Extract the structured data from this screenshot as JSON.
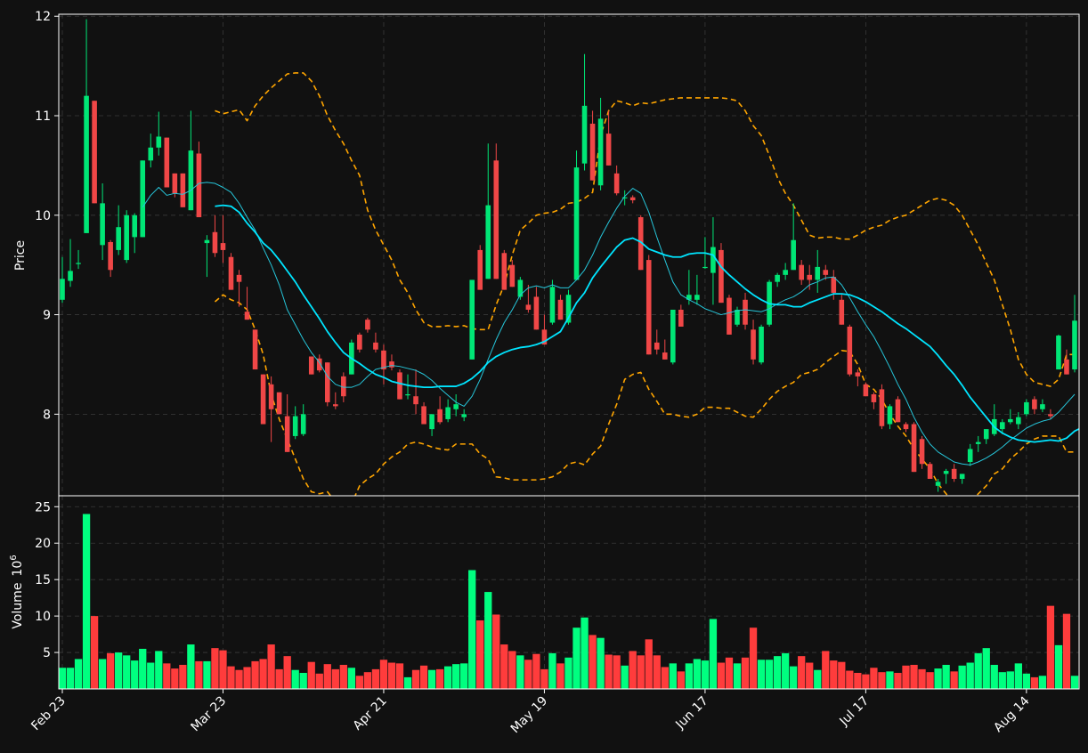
{
  "chart_data": {
    "type": "candlestick",
    "price_panel": {
      "ylabel": "Price",
      "ylim": [
        7.18,
        12.02
      ],
      "yticks": [
        8,
        9,
        10,
        11,
        12
      ],
      "grid": true
    },
    "volume_panel": {
      "ylabel": "Volume",
      "ylabel_exponent": "6",
      "ylim": [
        0,
        26.5
      ],
      "yticks": [
        5,
        10,
        15,
        20,
        25
      ],
      "grid": true
    },
    "x_axis": {
      "ticks": [
        {
          "index": 0,
          "label": "Feb 23"
        },
        {
          "index": 20,
          "label": "Mar 23"
        },
        {
          "index": 40,
          "label": "Apr 21"
        },
        {
          "index": 60,
          "label": "May 19"
        },
        {
          "index": 80,
          "label": "Jun 17"
        },
        {
          "index": 100,
          "label": "Jul 17"
        },
        {
          "index": 120,
          "label": "Aug 14"
        }
      ],
      "n_bars": 127
    },
    "colors": {
      "background": "#111111",
      "up": "#00e676",
      "down": "#f04747",
      "volume_up": "#00ff80",
      "volume_down": "#ff3c3c",
      "ma_fast": "#26c6da",
      "ma_slow": "#00e5ff",
      "bollinger": "#ffa500",
      "grid": "#3a3a3a",
      "axes": "#ffffff"
    },
    "ohlc": [
      [
        9.15,
        9.58,
        9.12,
        9.36
      ],
      [
        9.34,
        9.76,
        9.28,
        9.44
      ],
      [
        9.52,
        9.65,
        9.46,
        9.52
      ],
      [
        9.82,
        11.97,
        9.82,
        11.2
      ],
      [
        11.15,
        11.15,
        10.12,
        10.12
      ],
      [
        9.7,
        10.32,
        9.55,
        10.12
      ],
      [
        9.73,
        9.75,
        9.38,
        9.45
      ],
      [
        9.65,
        10.1,
        9.6,
        9.88
      ],
      [
        9.55,
        10.05,
        9.52,
        10.0
      ],
      [
        9.78,
        10.02,
        9.62,
        10.0
      ],
      [
        9.78,
        10.55,
        9.78,
        10.55
      ],
      [
        10.55,
        10.82,
        10.48,
        10.68
      ],
      [
        10.68,
        11.04,
        10.6,
        10.79
      ],
      [
        10.78,
        10.78,
        10.28,
        10.28
      ],
      [
        10.42,
        10.42,
        10.18,
        10.22
      ],
      [
        10.42,
        10.42,
        10.08,
        10.08
      ],
      [
        10.05,
        11.05,
        10.05,
        10.65
      ],
      [
        10.62,
        10.74,
        9.98,
        9.98
      ],
      [
        9.72,
        9.8,
        9.38,
        9.75
      ],
      [
        9.83,
        10.0,
        9.58,
        9.62
      ],
      [
        9.72,
        10.0,
        9.52,
        9.65
      ],
      [
        9.58,
        9.62,
        9.25,
        9.25
      ],
      [
        9.4,
        9.45,
        9.08,
        9.33
      ],
      [
        9.03,
        9.28,
        8.95,
        8.95
      ],
      [
        8.85,
        8.85,
        8.45,
        8.45
      ],
      [
        8.4,
        8.4,
        7.9,
        7.9
      ],
      [
        8.3,
        8.38,
        7.72,
        8.05
      ],
      [
        8.22,
        8.22,
        8.0,
        8.0
      ],
      [
        7.98,
        8.2,
        7.62,
        7.62
      ],
      [
        7.78,
        8.08,
        7.75,
        7.98
      ],
      [
        7.8,
        8.1,
        7.78,
        8.0
      ],
      [
        8.58,
        8.58,
        8.4,
        8.4
      ],
      [
        8.56,
        8.6,
        8.42,
        8.44
      ],
      [
        8.52,
        8.52,
        8.08,
        8.12
      ],
      [
        8.1,
        8.22,
        8.05,
        8.08
      ],
      [
        8.38,
        8.42,
        8.12,
        8.18
      ],
      [
        8.4,
        8.75,
        8.4,
        8.72
      ],
      [
        8.8,
        8.82,
        8.62,
        8.65
      ],
      [
        8.95,
        8.97,
        8.82,
        8.85
      ],
      [
        8.72,
        8.82,
        8.62,
        8.65
      ],
      [
        8.64,
        8.7,
        8.3,
        8.45
      ],
      [
        8.53,
        8.6,
        8.44,
        8.47
      ],
      [
        8.42,
        8.45,
        8.15,
        8.15
      ],
      [
        8.2,
        8.4,
        8.15,
        8.2
      ],
      [
        8.18,
        8.45,
        8.0,
        8.1
      ],
      [
        8.08,
        8.12,
        7.9,
        7.9
      ],
      [
        7.85,
        8.0,
        7.78,
        8.0
      ],
      [
        8.05,
        8.18,
        7.9,
        7.92
      ],
      [
        7.95,
        8.15,
        7.92,
        8.07
      ],
      [
        8.05,
        8.2,
        7.98,
        8.1
      ],
      [
        7.97,
        8.05,
        7.93,
        8.0
      ],
      [
        8.55,
        9.35,
        8.55,
        9.35
      ],
      [
        9.65,
        9.7,
        9.25,
        9.25
      ],
      [
        9.36,
        10.72,
        9.36,
        10.1
      ],
      [
        10.55,
        10.72,
        9.36,
        9.36
      ],
      [
        9.62,
        9.65,
        9.25,
        9.25
      ],
      [
        9.5,
        9.55,
        9.28,
        9.28
      ],
      [
        9.18,
        9.38,
        9.15,
        9.35
      ],
      [
        9.1,
        9.3,
        9.02,
        9.05
      ],
      [
        9.18,
        9.28,
        8.85,
        8.85
      ],
      [
        8.85,
        9.0,
        8.7,
        8.7
      ],
      [
        8.92,
        9.35,
        8.9,
        9.28
      ],
      [
        9.15,
        9.2,
        8.95,
        8.95
      ],
      [
        8.92,
        9.25,
        8.9,
        9.2
      ],
      [
        9.35,
        10.65,
        9.35,
        10.48
      ],
      [
        10.52,
        11.62,
        10.45,
        11.1
      ],
      [
        10.92,
        11.05,
        10.35,
        10.35
      ],
      [
        10.3,
        11.18,
        10.25,
        10.97
      ],
      [
        10.82,
        11.05,
        10.5,
        10.5
      ],
      [
        10.42,
        10.5,
        10.2,
        10.22
      ],
      [
        10.18,
        10.25,
        10.1,
        10.18
      ],
      [
        10.18,
        10.2,
        10.12,
        10.15
      ],
      [
        9.98,
        10.0,
        9.45,
        9.45
      ],
      [
        9.55,
        9.6,
        8.6,
        8.6
      ],
      [
        8.72,
        8.85,
        8.6,
        8.65
      ],
      [
        8.62,
        8.75,
        8.55,
        8.55
      ],
      [
        8.52,
        9.05,
        8.5,
        9.05
      ],
      [
        9.05,
        9.1,
        8.88,
        8.88
      ],
      [
        9.15,
        9.45,
        9.1,
        9.2
      ],
      [
        9.15,
        9.4,
        9.1,
        9.2
      ],
      [
        9.48,
        9.78,
        9.46,
        9.48
      ],
      [
        9.42,
        9.98,
        9.1,
        9.68
      ],
      [
        9.65,
        9.72,
        9.12,
        9.12
      ],
      [
        9.17,
        9.2,
        8.8,
        8.8
      ],
      [
        8.9,
        9.08,
        8.88,
        9.05
      ],
      [
        9.15,
        9.22,
        8.85,
        8.9
      ],
      [
        8.85,
        8.95,
        8.5,
        8.55
      ],
      [
        8.52,
        8.9,
        8.5,
        8.88
      ],
      [
        8.9,
        9.35,
        8.88,
        9.33
      ],
      [
        9.33,
        9.42,
        9.28,
        9.4
      ],
      [
        9.4,
        9.52,
        9.35,
        9.45
      ],
      [
        9.45,
        10.12,
        9.45,
        9.75
      ],
      [
        9.5,
        9.55,
        9.3,
        9.35
      ],
      [
        9.4,
        9.5,
        9.25,
        9.35
      ],
      [
        9.35,
        9.65,
        9.22,
        9.48
      ],
      [
        9.45,
        9.5,
        9.35,
        9.4
      ],
      [
        9.38,
        9.45,
        9.15,
        9.22
      ],
      [
        9.15,
        9.2,
        8.9,
        8.9
      ],
      [
        8.88,
        8.9,
        8.38,
        8.4
      ],
      [
        8.42,
        8.45,
        8.28,
        8.38
      ],
      [
        8.3,
        8.32,
        8.18,
        8.18
      ],
      [
        8.2,
        8.22,
        8.05,
        8.12
      ],
      [
        8.25,
        8.3,
        7.85,
        7.88
      ],
      [
        7.9,
        8.1,
        7.85,
        8.08
      ],
      [
        8.15,
        8.18,
        7.92,
        7.92
      ],
      [
        7.9,
        7.92,
        7.82,
        7.85
      ],
      [
        7.9,
        7.92,
        7.42,
        7.42
      ],
      [
        7.75,
        7.78,
        7.45,
        7.5
      ],
      [
        7.5,
        7.52,
        7.35,
        7.35
      ],
      [
        7.28,
        7.35,
        7.22,
        7.32
      ],
      [
        7.4,
        7.45,
        7.3,
        7.43
      ],
      [
        7.45,
        7.5,
        7.32,
        7.35
      ],
      [
        7.35,
        7.4,
        7.3,
        7.4
      ],
      [
        7.52,
        7.7,
        7.48,
        7.65
      ],
      [
        7.7,
        7.78,
        7.62,
        7.72
      ],
      [
        7.75,
        7.85,
        7.7,
        7.85
      ],
      [
        7.8,
        8.1,
        7.78,
        7.95
      ],
      [
        7.85,
        7.95,
        7.8,
        7.92
      ],
      [
        7.92,
        8.05,
        7.9,
        7.95
      ],
      [
        7.9,
        8.02,
        7.85,
        7.97
      ],
      [
        8.0,
        8.15,
        7.98,
        8.12
      ],
      [
        8.15,
        8.18,
        8.0,
        8.05
      ],
      [
        8.05,
        8.15,
        8.02,
        8.1
      ],
      [
        8.0,
        8.05,
        7.95,
        7.98
      ],
      [
        8.45,
        8.8,
        8.45,
        8.79
      ],
      [
        8.55,
        8.65,
        8.4,
        8.4
      ],
      [
        8.45,
        9.2,
        8.42,
        8.94
      ]
    ],
    "volume": [
      2.9,
      2.9,
      4.1,
      24.0,
      10.0,
      4.1,
      4.9,
      5.0,
      4.6,
      3.9,
      5.5,
      3.6,
      5.2,
      3.5,
      2.8,
      3.3,
      6.1,
      3.8,
      3.8,
      5.6,
      5.3,
      3.1,
      2.6,
      3.0,
      3.8,
      4.1,
      6.1,
      2.7,
      4.5,
      2.6,
      2.2,
      3.7,
      2.1,
      3.4,
      2.7,
      3.3,
      2.9,
      1.8,
      2.3,
      2.7,
      4.0,
      3.6,
      3.5,
      1.6,
      2.6,
      3.2,
      2.6,
      2.7,
      3.1,
      3.4,
      3.5,
      16.3,
      9.4,
      13.3,
      10.2,
      6.1,
      5.2,
      4.6,
      4.0,
      4.8,
      2.7,
      4.9,
      3.5,
      4.3,
      8.4,
      9.8,
      7.4,
      7.0,
      4.7,
      4.6,
      3.2,
      5.2,
      4.6,
      6.8,
      4.6,
      3.0,
      3.5,
      2.4,
      3.5,
      4.1,
      3.9,
      9.6,
      3.6,
      4.3,
      3.5,
      4.3,
      8.4,
      4.0,
      4.0,
      4.5,
      4.9,
      3.1,
      4.5,
      3.6,
      2.6,
      5.2,
      3.9,
      3.7,
      2.5,
      2.2,
      2.0,
      2.9,
      2.3,
      2.4,
      2.2,
      3.2,
      3.3,
      2.7,
      2.3,
      2.8,
      3.3,
      2.4,
      3.2,
      3.6,
      4.9,
      5.6,
      3.3,
      2.3,
      2.4,
      3.5,
      2.1,
      1.6,
      1.8,
      11.4,
      6.0,
      10.3,
      1.8
    ],
    "ma_fast": [
      null,
      null,
      null,
      null,
      null,
      null,
      null,
      null,
      null,
      null,
      10.08,
      10.2,
      10.28,
      10.2,
      10.22,
      10.21,
      10.25,
      10.32,
      10.33,
      10.32,
      10.28,
      10.23,
      10.12,
      9.98,
      9.85,
      9.67,
      9.5,
      9.3,
      9.05,
      8.9,
      8.75,
      8.62,
      8.52,
      8.38,
      8.3,
      8.27,
      8.27,
      8.3,
      8.38,
      8.45,
      8.47,
      8.49,
      8.48,
      8.46,
      8.44,
      8.4,
      8.34,
      8.26,
      8.19,
      8.12,
      8.08,
      8.18,
      8.35,
      8.55,
      8.75,
      8.92,
      9.05,
      9.2,
      9.27,
      9.29,
      9.27,
      9.3,
      9.27,
      9.27,
      9.35,
      9.45,
      9.6,
      9.78,
      9.93,
      10.07,
      10.19,
      10.27,
      10.22,
      10.03,
      9.78,
      9.55,
      9.33,
      9.2,
      9.15,
      9.11,
      9.06,
      9.03,
      9.0,
      9.02,
      9.04,
      9.05,
      9.04,
      9.03,
      9.06,
      9.11,
      9.15,
      9.18,
      9.23,
      9.3,
      9.33,
      9.37,
      9.38,
      9.3,
      9.17,
      9.03,
      8.9,
      8.78,
      8.63,
      8.47,
      8.3,
      8.15,
      7.97,
      7.82,
      7.7,
      7.62,
      7.57,
      7.52,
      7.5,
      7.49,
      7.52,
      7.56,
      7.61,
      7.67,
      7.74,
      7.8,
      7.86,
      7.9,
      7.93,
      7.95,
      8.02,
      8.11,
      8.2
    ],
    "ma_slow": [
      null,
      null,
      null,
      null,
      null,
      null,
      null,
      null,
      null,
      null,
      null,
      null,
      null,
      null,
      null,
      null,
      null,
      null,
      null,
      10.09,
      10.1,
      10.09,
      10.03,
      9.92,
      9.83,
      9.72,
      9.65,
      9.55,
      9.44,
      9.33,
      9.2,
      9.08,
      8.96,
      8.83,
      8.72,
      8.62,
      8.56,
      8.51,
      8.45,
      8.4,
      8.37,
      8.33,
      8.31,
      8.29,
      8.28,
      8.27,
      8.27,
      8.28,
      8.28,
      8.28,
      8.31,
      8.36,
      8.43,
      8.52,
      8.58,
      8.62,
      8.65,
      8.67,
      8.68,
      8.7,
      8.73,
      8.78,
      8.83,
      8.97,
      9.12,
      9.22,
      9.37,
      9.48,
      9.58,
      9.68,
      9.75,
      9.77,
      9.73,
      9.66,
      9.63,
      9.6,
      9.58,
      9.58,
      9.61,
      9.62,
      9.62,
      9.6,
      9.48,
      9.4,
      9.33,
      9.26,
      9.2,
      9.15,
      9.11,
      9.1,
      9.1,
      9.08,
      9.08,
      9.12,
      9.15,
      9.18,
      9.21,
      9.21,
      9.2,
      9.17,
      9.13,
      9.08,
      9.03,
      8.97,
      8.91,
      8.86,
      8.8,
      8.74,
      8.68,
      8.59,
      8.49,
      8.4,
      8.29,
      8.17,
      8.07,
      7.97,
      7.87,
      7.81,
      7.77,
      7.74,
      7.73,
      7.72,
      7.73,
      7.74,
      7.73,
      7.76,
      7.83,
      7.87
    ],
    "bb_upper": [
      null,
      null,
      null,
      null,
      null,
      null,
      null,
      null,
      null,
      null,
      null,
      null,
      null,
      null,
      null,
      null,
      null,
      null,
      null,
      11.05,
      11.02,
      11.04,
      11.06,
      10.95,
      11.1,
      11.2,
      11.28,
      11.35,
      11.42,
      11.43,
      11.43,
      11.35,
      11.2,
      11.0,
      10.85,
      10.72,
      10.55,
      10.4,
      10.05,
      9.85,
      9.7,
      9.55,
      9.35,
      9.22,
      9.05,
      8.92,
      8.88,
      8.88,
      8.89,
      8.88,
      8.89,
      8.86,
      8.85,
      8.85,
      9.1,
      9.3,
      9.6,
      9.85,
      9.92,
      10.0,
      10.02,
      10.03,
      10.06,
      10.12,
      10.13,
      10.17,
      10.23,
      10.8,
      11.05,
      11.15,
      11.13,
      11.1,
      11.13,
      11.12,
      11.14,
      11.16,
      11.17,
      11.18,
      11.18,
      11.18,
      11.18,
      11.18,
      11.18,
      11.17,
      11.15,
      11.05,
      10.9,
      10.8,
      10.6,
      10.38,
      10.22,
      10.1,
      9.95,
      9.8,
      9.77,
      9.78,
      9.78,
      9.76,
      9.76,
      9.8,
      9.85,
      9.88,
      9.9,
      9.95,
      9.98,
      10.0,
      10.05,
      10.1,
      10.15,
      10.17,
      10.15,
      10.1,
      10.0,
      9.85,
      9.7,
      9.52,
      9.35,
      9.1,
      8.85,
      8.55,
      8.4,
      8.32,
      8.3,
      8.28,
      8.35,
      8.6,
      8.6
    ],
    "bb_lower": [
      null,
      null,
      null,
      null,
      null,
      null,
      null,
      null,
      null,
      null,
      null,
      null,
      null,
      null,
      null,
      null,
      null,
      null,
      null,
      9.13,
      9.2,
      9.15,
      9.12,
      9.05,
      8.85,
      8.6,
      8.2,
      7.95,
      7.75,
      7.55,
      7.35,
      7.22,
      7.2,
      7.22,
      7.12,
      7.1,
      7.1,
      7.28,
      7.35,
      7.4,
      7.5,
      7.57,
      7.62,
      7.7,
      7.72,
      7.7,
      7.67,
      7.65,
      7.64,
      7.7,
      7.7,
      7.7,
      7.6,
      7.55,
      7.37,
      7.36,
      7.34,
      7.34,
      7.34,
      7.34,
      7.35,
      7.37,
      7.42,
      7.5,
      7.52,
      7.49,
      7.6,
      7.68,
      7.9,
      8.1,
      8.35,
      8.4,
      8.42,
      8.25,
      8.13,
      8.0,
      8.0,
      7.98,
      7.97,
      8.0,
      8.07,
      8.07,
      8.06,
      8.06,
      8.02,
      7.98,
      7.97,
      8.05,
      8.15,
      8.23,
      8.28,
      8.32,
      8.4,
      8.42,
      8.45,
      8.52,
      8.58,
      8.64,
      8.63,
      8.5,
      8.3,
      8.25,
      8.15,
      8.0,
      7.88,
      7.78,
      7.65,
      7.55,
      7.45,
      7.3,
      7.2,
      7.1,
      7.08,
      7.1,
      7.2,
      7.28,
      7.4,
      7.45,
      7.55,
      7.62,
      7.7,
      7.75,
      7.78,
      7.78,
      7.78,
      7.62,
      7.62
    ]
  }
}
